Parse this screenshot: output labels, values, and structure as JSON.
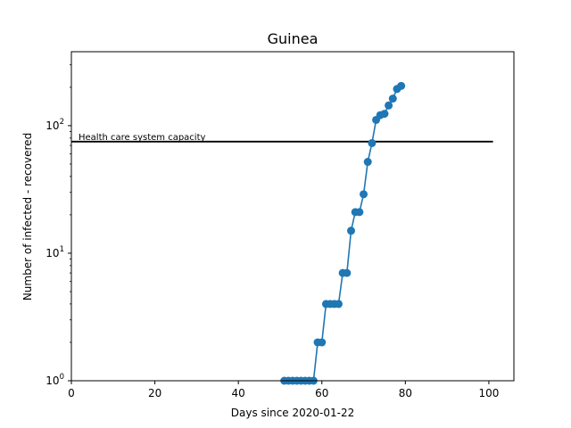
{
  "chart_data": {
    "type": "line",
    "title": "Guinea",
    "xlabel": "Days since 2020-01-22",
    "ylabel": "Number of infected - recovered",
    "yscale": "log",
    "xlim": [
      0,
      106
    ],
    "ylim": [
      1,
      380
    ],
    "grid": false,
    "x_ticks": [
      {
        "value": 0,
        "label": "0"
      },
      {
        "value": 20,
        "label": "20"
      },
      {
        "value": 40,
        "label": "40"
      },
      {
        "value": 60,
        "label": "60"
      },
      {
        "value": 80,
        "label": "80"
      },
      {
        "value": 100,
        "label": "100"
      }
    ],
    "y_ticks": [
      {
        "value": 1,
        "base": "10",
        "exp": "0"
      },
      {
        "value": 10,
        "base": "10",
        "exp": "1"
      },
      {
        "value": 100,
        "base": "10",
        "exp": "2"
      }
    ],
    "series": [
      {
        "color": "#1f77b4",
        "x": [
          51,
          52,
          53,
          54,
          55,
          56,
          57,
          58,
          59,
          60,
          61,
          62,
          63,
          64,
          65,
          66,
          67,
          68,
          69,
          70,
          71,
          72,
          73,
          74,
          75,
          76,
          77,
          78,
          79
        ],
        "y": [
          1,
          1,
          1,
          1,
          1,
          1,
          1,
          1,
          2,
          2,
          4,
          4,
          4,
          4,
          7,
          7,
          15,
          21,
          21,
          29,
          52,
          73,
          111,
          121,
          124,
          144,
          163,
          194,
          205
        ]
      }
    ],
    "hline": {
      "y": 75,
      "x_start": 0,
      "x_end": 101,
      "color": "#000000",
      "label": "Health care system capacity"
    }
  }
}
